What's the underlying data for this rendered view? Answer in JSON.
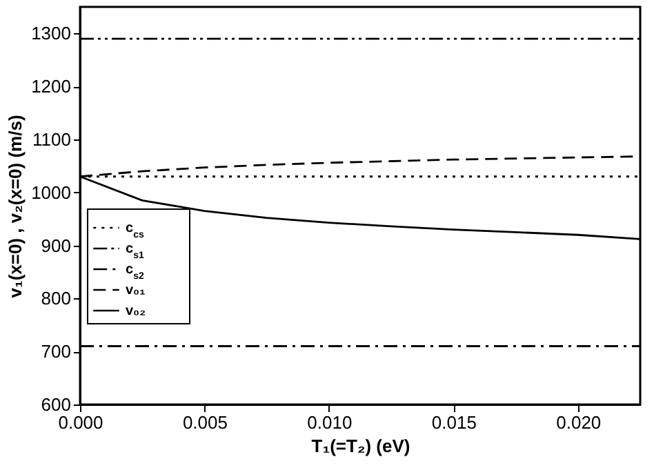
{
  "chart_data": {
    "type": "line",
    "xlabel": "T₁(=T₂)  (eV)",
    "ylabel": "v₁(x=0) , v₂(x=0) (m/s)",
    "xlim": [
      0,
      0.0225
    ],
    "xticks": [
      {
        "value": 0,
        "label": "0.000"
      },
      {
        "value": 0.005,
        "label": "0.005"
      },
      {
        "value": 0.01,
        "label": "0.010"
      },
      {
        "value": 0.015,
        "label": "0.015"
      },
      {
        "value": 0.02,
        "label": "0.020"
      }
    ],
    "ylim": [
      600,
      1350
    ],
    "yticks": [
      600,
      700,
      800,
      900,
      1000,
      1100,
      1200,
      1300
    ],
    "grid": false,
    "legend": "left",
    "series": [
      {
        "name": "c$_{cs}$",
        "color": "#000000",
        "line_style": "dotted",
        "x": [
          0,
          0.0225
        ],
        "values": [
          1030,
          1030
        ]
      },
      {
        "name": "c$_{s1}$",
        "color": "#000000",
        "line_style": "dashdotdot",
        "x": [
          0,
          0.0225
        ],
        "values": [
          1290,
          1290
        ]
      },
      {
        "name": "c$_{s2}$",
        "color": "#000000",
        "line_style": "dashdot",
        "x": [
          0,
          0.0225
        ],
        "values": [
          710,
          710
        ]
      },
      {
        "name": "v₀₁",
        "color": "#000000",
        "line_style": "dashed",
        "x": [
          0,
          0.0025,
          0.005,
          0.0075,
          0.01,
          0.0125,
          0.015,
          0.0175,
          0.02,
          0.0225
        ],
        "values": [
          1030,
          1040,
          1047,
          1052,
          1056,
          1059,
          1062,
          1064,
          1066,
          1068
        ]
      },
      {
        "name": "v₀₂",
        "color": "#000000",
        "line_style": "solid",
        "x": [
          0,
          0.0025,
          0.005,
          0.0075,
          0.01,
          0.0125,
          0.015,
          0.0175,
          0.02,
          0.0225
        ],
        "values": [
          1030,
          985,
          965,
          952,
          943,
          936,
          930,
          925,
          920,
          912
        ]
      }
    ]
  }
}
